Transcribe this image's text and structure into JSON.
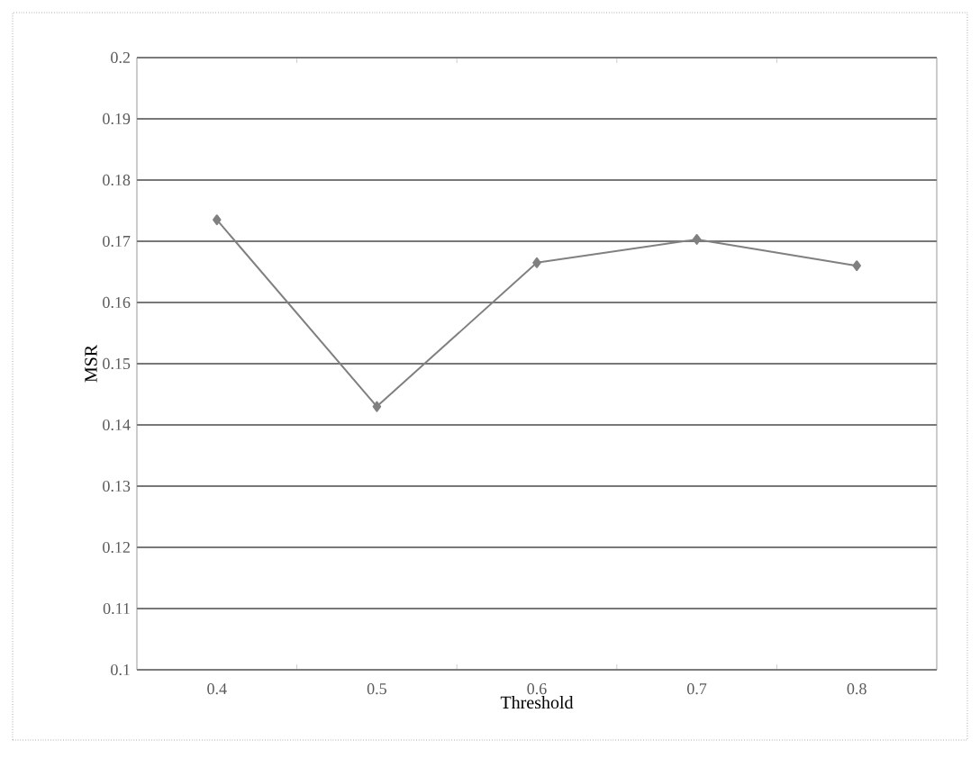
{
  "chart_data": {
    "type": "line",
    "xlabel": "Threshold",
    "ylabel": "MSR",
    "categories": [
      "0.4",
      "0.5",
      "0.6",
      "0.7",
      "0.8"
    ],
    "series": [
      {
        "color": "#808080",
        "values": [
          0.1735,
          0.143,
          0.1665,
          0.1703,
          0.166
        ]
      }
    ],
    "ylim": [
      0.1,
      0.2
    ],
    "yticks": [
      0.1,
      0.11,
      0.12,
      0.13,
      0.14,
      0.15,
      0.16,
      0.17,
      0.18,
      0.19,
      0.2
    ],
    "grid": "y",
    "marker": "diamond",
    "line_style": "solid"
  }
}
